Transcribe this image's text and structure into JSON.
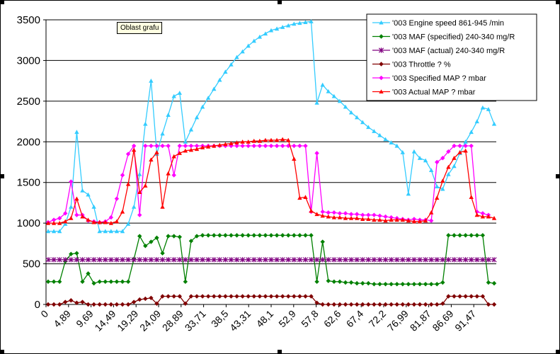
{
  "tooltip": "Oblast grafu",
  "chart_data": {
    "type": "line",
    "title": "",
    "xlabel": "",
    "ylabel": "",
    "ylim": [
      0,
      3500
    ],
    "yticks": [
      0,
      500,
      1000,
      1500,
      2000,
      2500,
      3000,
      3500
    ],
    "ytick_labels": [
      "0",
      "500",
      "1000",
      "1500",
      "2000",
      "2500",
      "3000",
      "3500"
    ],
    "grid": "horizontal",
    "legend_position": "top-right",
    "x_tick_labels": [
      "0",
      "4,89",
      "9,69",
      "14,49",
      "19,29",
      "24,09",
      "28,89",
      "33,71",
      "38,5",
      "43,31",
      "48,1",
      "52,9",
      "57,8",
      "62,6",
      "67,4",
      "72,2",
      "76,99",
      "81,87",
      "86,69",
      "91,47"
    ],
    "series": [
      {
        "name": "'003 Engine speed 861-945  /min",
        "color": "#33ccff",
        "marker": "triangle",
        "values": [
          900,
          900,
          900,
          990,
          1200,
          2120,
          1400,
          1350,
          1200,
          900,
          900,
          900,
          900,
          900,
          990,
          1200,
          1600,
          2220,
          2750,
          1850,
          2100,
          2330,
          2560,
          2600,
          2000,
          2150,
          2300,
          2430,
          2540,
          2650,
          2760,
          2860,
          2950,
          3040,
          3110,
          3180,
          3240,
          3290,
          3330,
          3370,
          3390,
          3410,
          3430,
          3450,
          3460,
          3470,
          3480,
          2480,
          2700,
          2620,
          2560,
          2500,
          2430,
          2360,
          2300,
          2240,
          2180,
          2130,
          2080,
          2030,
          1990,
          1950,
          1870,
          1360,
          1880,
          1800,
          1770,
          1650,
          1450,
          1420,
          1600,
          1700,
          1860,
          2000,
          2120,
          2250,
          2420,
          2400,
          2220
        ]
      },
      {
        "name": "'003 MAF (specified) 240-340  mg/R",
        "color": "#008000",
        "marker": "diamond",
        "values": [
          280,
          280,
          280,
          530,
          620,
          630,
          280,
          380,
          260,
          280,
          280,
          280,
          280,
          280,
          280,
          560,
          840,
          720,
          770,
          820,
          630,
          840,
          840,
          830,
          280,
          780,
          840,
          850,
          850,
          850,
          850,
          850,
          850,
          850,
          850,
          850,
          850,
          850,
          850,
          850,
          850,
          850,
          850,
          850,
          850,
          850,
          850,
          280,
          770,
          290,
          280,
          280,
          270,
          270,
          260,
          260,
          260,
          250,
          250,
          250,
          250,
          250,
          250,
          250,
          250,
          250,
          250,
          250,
          250,
          270,
          850,
          850,
          850,
          850,
          850,
          850,
          850,
          270,
          260
        ]
      },
      {
        "name": "'003 MAF (actual) 240-340  mg/R",
        "color": "#800080",
        "marker": "star",
        "values": [
          550,
          550,
          550,
          550,
          550,
          550,
          550,
          550,
          550,
          550,
          550,
          550,
          550,
          550,
          550,
          550,
          550,
          550,
          550,
          550,
          550,
          550,
          550,
          550,
          550,
          550,
          550,
          550,
          550,
          550,
          550,
          550,
          550,
          550,
          550,
          550,
          550,
          550,
          550,
          550,
          550,
          550,
          550,
          550,
          550,
          550,
          550,
          550,
          550,
          550,
          550,
          550,
          550,
          550,
          550,
          550,
          550,
          550,
          550,
          550,
          550,
          550,
          550,
          550,
          550,
          550,
          550,
          550,
          550,
          550,
          550,
          550,
          550,
          550,
          550,
          550,
          550,
          550,
          550
        ]
      },
      {
        "name": "'003 Throttle ? %",
        "color": "#800000",
        "marker": "diamond",
        "values": [
          0,
          0,
          0,
          30,
          50,
          20,
          30,
          0,
          0,
          0,
          0,
          0,
          0,
          0,
          0,
          30,
          60,
          70,
          80,
          10,
          100,
          100,
          100,
          100,
          10,
          100,
          100,
          100,
          100,
          100,
          100,
          100,
          100,
          100,
          100,
          100,
          100,
          100,
          100,
          100,
          100,
          100,
          100,
          100,
          100,
          100,
          100,
          20,
          0,
          0,
          0,
          0,
          0,
          0,
          0,
          0,
          0,
          0,
          0,
          0,
          0,
          0,
          0,
          0,
          0,
          0,
          0,
          0,
          0,
          10,
          100,
          100,
          100,
          100,
          100,
          100,
          100,
          0,
          0
        ]
      },
      {
        "name": "'003 Specified MAP ?  mbar",
        "color": "#ff00ff",
        "marker": "diamond",
        "values": [
          1010,
          1040,
          1060,
          1120,
          1510,
          1100,
          1100,
          1030,
          1020,
          1010,
          1020,
          1070,
          1300,
          1590,
          1850,
          1950,
          1100,
          1950,
          1950,
          1950,
          1950,
          1950,
          1590,
          1950,
          1950,
          1950,
          1950,
          1950,
          1950,
          1950,
          1950,
          1950,
          1950,
          1950,
          1950,
          1950,
          1950,
          1950,
          1950,
          1950,
          1950,
          1950,
          1950,
          1950,
          1950,
          1950,
          1140,
          1860,
          1140,
          1130,
          1130,
          1120,
          1120,
          1110,
          1110,
          1100,
          1100,
          1100,
          1090,
          1080,
          1070,
          1060,
          1050,
          1040,
          1050,
          1040,
          1040,
          1030,
          1750,
          1800,
          1880,
          1950,
          1950,
          1950,
          1950,
          1140,
          1120,
          1100
        ]
      },
      {
        "name": "'003 Actual MAP ?  mbar",
        "color": "#ff0000",
        "marker": "triangle",
        "values": [
          1000,
          1000,
          1000,
          1020,
          1060,
          1300,
          1080,
          1040,
          1010,
          1010,
          1010,
          1000,
          1020,
          1140,
          1480,
          1900,
          1380,
          1460,
          1780,
          1870,
          1200,
          1610,
          1820,
          1860,
          1890,
          1900,
          1910,
          1930,
          1940,
          1950,
          1960,
          1970,
          1980,
          1990,
          2000,
          2000,
          2010,
          2010,
          2020,
          2020,
          2020,
          2030,
          2020,
          1790,
          1310,
          1320,
          1150,
          1110,
          1090,
          1080,
          1070,
          1070,
          1060,
          1060,
          1060,
          1050,
          1050,
          1040,
          1040,
          1030,
          1040,
          1040,
          1040,
          1030,
          1020,
          1020,
          1030,
          1130,
          1310,
          1520,
          1690,
          1800,
          1870,
          1890,
          1320,
          1100,
          1080,
          1080,
          1060
        ]
      }
    ]
  }
}
